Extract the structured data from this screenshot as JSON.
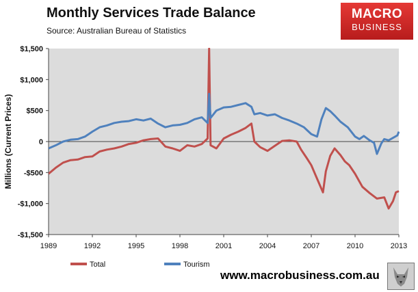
{
  "header": {
    "title": "Monthly Services Trade Balance",
    "subtitle": "Source: Australian Bureau of Statistics"
  },
  "logo": {
    "line1": "MACRO",
    "line2": "BUSINESS",
    "color": "#d32f2f"
  },
  "footer": {
    "website": "www.macrobusiness.com.au"
  },
  "chart_data": {
    "type": "line",
    "title": "Monthly Services Trade Balance",
    "ylabel": "Millions (Current Prices)",
    "xlabel": "",
    "xlim": [
      1989.0,
      2013.0
    ],
    "ylim": [
      -1500,
      1500
    ],
    "x_ticks": [
      "1989",
      "1992",
      "1995",
      "1998",
      "2001",
      "2004",
      "2007",
      "2010",
      "2013"
    ],
    "y_ticks": [
      "$1,500",
      "$1,000",
      "$500",
      "0",
      "-$500",
      "-$1,000",
      "-$1,500"
    ],
    "grid": false,
    "plot_background": "#dcdcdc",
    "legend_position": "bottom",
    "series": [
      {
        "name": "Total",
        "color": "#c0504d",
        "points": [
          [
            1989.0,
            -520
          ],
          [
            1989.5,
            -420
          ],
          [
            1990.0,
            -340
          ],
          [
            1990.5,
            -300
          ],
          [
            1991.0,
            -290
          ],
          [
            1991.5,
            -250
          ],
          [
            1992.0,
            -240
          ],
          [
            1992.5,
            -160
          ],
          [
            1993.0,
            -130
          ],
          [
            1993.5,
            -110
          ],
          [
            1994.0,
            -80
          ],
          [
            1994.5,
            -40
          ],
          [
            1995.0,
            -20
          ],
          [
            1995.5,
            20
          ],
          [
            1996.0,
            40
          ],
          [
            1996.5,
            50
          ],
          [
            1997.0,
            -80
          ],
          [
            1997.5,
            -110
          ],
          [
            1998.0,
            -150
          ],
          [
            1998.5,
            -60
          ],
          [
            1999.0,
            -80
          ],
          [
            1999.5,
            -40
          ],
          [
            1999.9,
            50
          ],
          [
            2000.0,
            1500
          ],
          [
            2000.1,
            -60
          ],
          [
            2000.5,
            -110
          ],
          [
            2001.0,
            50
          ],
          [
            2001.5,
            110
          ],
          [
            2002.0,
            160
          ],
          [
            2002.5,
            220
          ],
          [
            2002.9,
            290
          ],
          [
            2003.1,
            0
          ],
          [
            2003.5,
            -90
          ],
          [
            2004.0,
            -150
          ],
          [
            2004.5,
            -70
          ],
          [
            2005.0,
            10
          ],
          [
            2005.5,
            20
          ],
          [
            2006.0,
            0
          ],
          [
            2006.3,
            -130
          ],
          [
            2006.7,
            -270
          ],
          [
            2007.0,
            -380
          ],
          [
            2007.4,
            -600
          ],
          [
            2007.8,
            -820
          ],
          [
            2008.0,
            -480
          ],
          [
            2008.3,
            -230
          ],
          [
            2008.6,
            -110
          ],
          [
            2009.0,
            -220
          ],
          [
            2009.3,
            -320
          ],
          [
            2009.6,
            -380
          ],
          [
            2010.0,
            -520
          ],
          [
            2010.5,
            -730
          ],
          [
            2011.0,
            -830
          ],
          [
            2011.5,
            -920
          ],
          [
            2012.0,
            -900
          ],
          [
            2012.3,
            -1080
          ],
          [
            2012.6,
            -960
          ],
          [
            2012.8,
            -820
          ],
          [
            2013.0,
            -800
          ]
        ]
      },
      {
        "name": "Tourism",
        "color": "#4f81bd",
        "points": [
          [
            1989.0,
            -110
          ],
          [
            1989.5,
            -60
          ],
          [
            1990.0,
            0
          ],
          [
            1990.5,
            30
          ],
          [
            1991.0,
            40
          ],
          [
            1991.5,
            80
          ],
          [
            1992.0,
            160
          ],
          [
            1992.5,
            230
          ],
          [
            1993.0,
            260
          ],
          [
            1993.5,
            300
          ],
          [
            1994.0,
            320
          ],
          [
            1994.5,
            330
          ],
          [
            1995.0,
            360
          ],
          [
            1995.5,
            340
          ],
          [
            1996.0,
            370
          ],
          [
            1996.5,
            290
          ],
          [
            1997.0,
            230
          ],
          [
            1997.5,
            260
          ],
          [
            1998.0,
            270
          ],
          [
            1998.5,
            300
          ],
          [
            1999.0,
            360
          ],
          [
            1999.5,
            390
          ],
          [
            1999.9,
            300
          ],
          [
            2000.0,
            770
          ],
          [
            2000.1,
            380
          ],
          [
            2000.5,
            500
          ],
          [
            2001.0,
            550
          ],
          [
            2001.5,
            560
          ],
          [
            2002.0,
            590
          ],
          [
            2002.5,
            620
          ],
          [
            2002.9,
            560
          ],
          [
            2003.1,
            440
          ],
          [
            2003.5,
            460
          ],
          [
            2004.0,
            420
          ],
          [
            2004.5,
            440
          ],
          [
            2005.0,
            380
          ],
          [
            2005.5,
            340
          ],
          [
            2006.0,
            290
          ],
          [
            2006.5,
            230
          ],
          [
            2007.0,
            120
          ],
          [
            2007.4,
            80
          ],
          [
            2007.7,
            360
          ],
          [
            2008.0,
            540
          ],
          [
            2008.3,
            490
          ],
          [
            2008.6,
            420
          ],
          [
            2009.0,
            320
          ],
          [
            2009.5,
            230
          ],
          [
            2010.0,
            80
          ],
          [
            2010.3,
            40
          ],
          [
            2010.6,
            90
          ],
          [
            2011.0,
            20
          ],
          [
            2011.3,
            -20
          ],
          [
            2011.5,
            -200
          ],
          [
            2011.8,
            -30
          ],
          [
            2012.0,
            40
          ],
          [
            2012.3,
            20
          ],
          [
            2012.6,
            60
          ],
          [
            2012.9,
            100
          ],
          [
            2013.0,
            160
          ]
        ]
      }
    ]
  }
}
